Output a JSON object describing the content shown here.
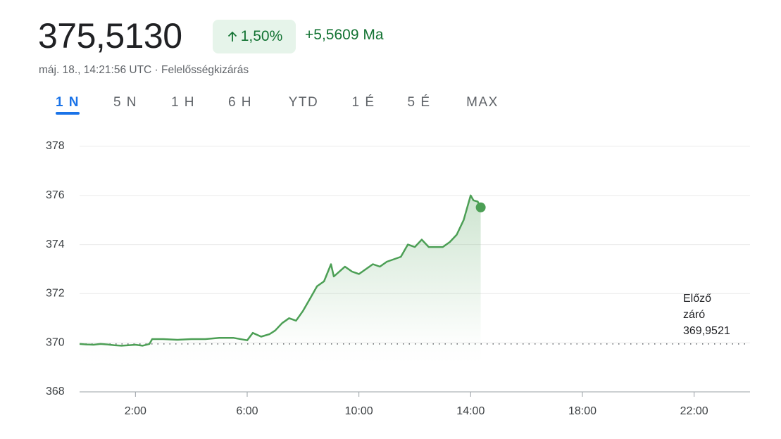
{
  "header": {
    "price": "375,5130",
    "change_percent": "1,50%",
    "change_amount": "+5,5609 Ma",
    "timestamp": "máj. 18., 14:21:56 UTC · Felelősségkizárás"
  },
  "tabs": {
    "items": [
      "1 N",
      "5 N",
      "1 H",
      "6 H",
      "YTD",
      "1 É",
      "5 É",
      "MAX"
    ],
    "selected": 0
  },
  "chart_data": {
    "type": "line",
    "x": [
      0,
      0.25,
      0.5,
      0.75,
      1,
      1.25,
      1.5,
      1.75,
      2,
      2.25,
      2.5,
      2.6,
      3,
      3.5,
      4,
      4.5,
      5,
      5.5,
      6,
      6.2,
      6.5,
      6.8,
      7,
      7.25,
      7.5,
      7.75,
      8,
      8.25,
      8.5,
      8.75,
      9,
      9.1,
      9.5,
      9.75,
      10,
      10.25,
      10.5,
      10.75,
      11,
      11.25,
      11.5,
      11.75,
      12,
      12.25,
      12.5,
      12.75,
      13,
      13.25,
      13.5,
      13.75,
      14,
      14.1,
      14.25,
      14.36
    ],
    "series": [
      {
        "color": "#4c9f55",
        "values": [
          369.95,
          369.93,
          369.92,
          369.95,
          369.93,
          369.9,
          369.88,
          369.9,
          369.92,
          369.88,
          369.95,
          370.15,
          370.15,
          370.12,
          370.15,
          370.15,
          370.2,
          370.2,
          370.1,
          370.4,
          370.25,
          370.35,
          370.5,
          370.8,
          371.0,
          370.9,
          371.3,
          371.8,
          372.3,
          372.5,
          373.2,
          372.7,
          373.1,
          372.9,
          372.8,
          373.0,
          373.2,
          373.1,
          373.3,
          373.4,
          373.5,
          374.0,
          373.9,
          374.2,
          373.9,
          373.9,
          373.9,
          374.1,
          374.4,
          375.0,
          376.0,
          375.8,
          375.75,
          375.513
        ]
      }
    ],
    "xlim": [
      0,
      24
    ],
    "xticks": [
      {
        "value": 2,
        "label": "2:00"
      },
      {
        "value": 6,
        "label": "6:00"
      },
      {
        "value": 10,
        "label": "10:00"
      },
      {
        "value": 14,
        "label": "14:00"
      },
      {
        "value": 18,
        "label": "18:00"
      },
      {
        "value": 22,
        "label": "22:00"
      }
    ],
    "ylim": [
      368,
      378
    ],
    "yticks": [
      368,
      370,
      372,
      374,
      376,
      378
    ],
    "grid": true,
    "reference_line": {
      "label_lines": [
        "Előző",
        "záró"
      ],
      "value": 369.9521,
      "value_label": "369,9521"
    }
  }
}
